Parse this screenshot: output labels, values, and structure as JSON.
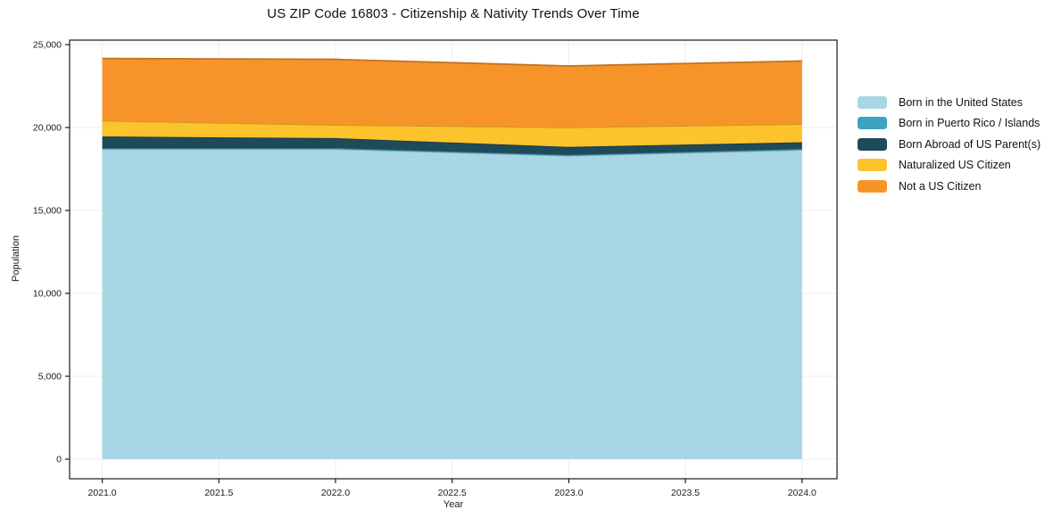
{
  "chart_data": {
    "type": "area",
    "stacked": true,
    "title": "US ZIP Code 16803 - Citizenship & Nativity Trends Over Time",
    "xlabel": "Year",
    "ylabel": "Population",
    "x": [
      2021,
      2022,
      2023,
      2024
    ],
    "series": [
      {
        "name": "Born in the United States",
        "color": "#a9d6e5",
        "values": [
          18700,
          18700,
          18300,
          18650
        ]
      },
      {
        "name": "Born in Puerto Rico / Islands",
        "color": "#3aa3bf",
        "values": [
          60,
          60,
          50,
          60
        ]
      },
      {
        "name": "Born Abroad of US Parent(s)",
        "color": "#1f4a5a",
        "values": [
          700,
          600,
          480,
          400
        ]
      },
      {
        "name": "Naturalized US Citizen",
        "color": "#fcc32d",
        "values": [
          950,
          800,
          1180,
          1100
        ]
      },
      {
        "name": "Not a US Citizen",
        "color": "#f79429",
        "values": [
          3750,
          3950,
          3700,
          3800
        ]
      }
    ],
    "cumulative_totals": [
      24160,
      24110,
      23710,
      24010
    ],
    "xticks": {
      "values": [
        2021.0,
        2021.5,
        2022.0,
        2022.5,
        2023.0,
        2023.5,
        2024.0
      ],
      "labels": [
        "2021.0",
        "2021.5",
        "2022.0",
        "2022.5",
        "2023.0",
        "2023.5",
        "2024.0"
      ]
    },
    "yticks": {
      "values": [
        0,
        5000,
        10000,
        15000,
        20000,
        25000
      ],
      "labels": [
        "0",
        "5,000",
        "10,000",
        "15,000",
        "20,000",
        "25,000"
      ]
    },
    "xlim": [
      2020.86,
      2024.15
    ],
    "ylim": [
      -1180,
      25270
    ],
    "grid": true,
    "legend_position": "right",
    "frame_color": "#1a1a1a",
    "grid_color": "#ececec"
  }
}
